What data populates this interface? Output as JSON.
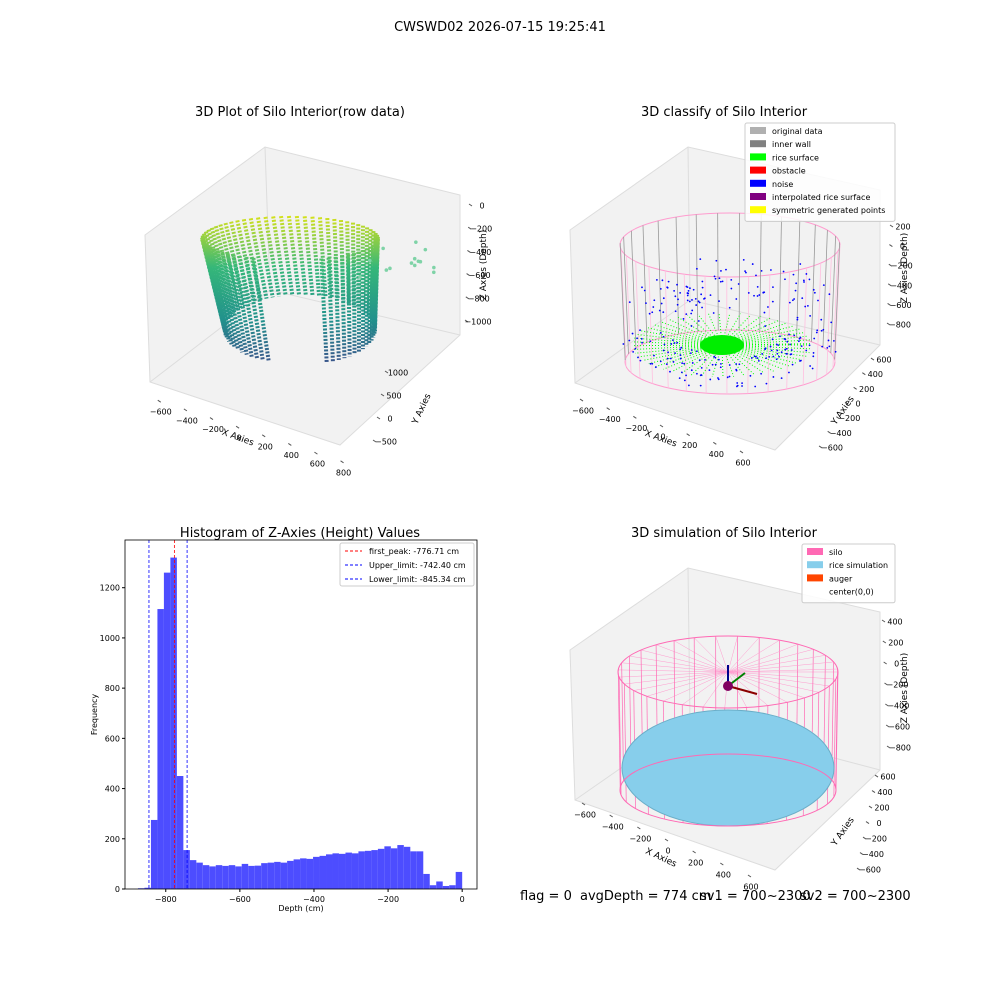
{
  "title": "CWSWD02 2026-07-15 19:25:41",
  "chart_data": [
    {
      "type": "scatter3d",
      "title": "3D Plot of Silo Interior(row data)",
      "xlabel": "X Axies",
      "ylabel": "Y Axies",
      "zlabel": "Z Axies (Depth)",
      "xlim": [
        -700,
        900
      ],
      "ylim": [
        -700,
        1200
      ],
      "zlim": [
        -1100,
        100
      ],
      "xticks": [
        {
          "value": -600,
          "label": "−600"
        },
        {
          "value": -400,
          "label": "−400"
        },
        {
          "value": -200,
          "label": "−200"
        },
        0,
        200,
        400,
        600,
        800
      ],
      "yticks": [
        {
          "value": -500,
          "label": "−500"
        },
        0,
        500,
        1000
      ],
      "zticks": [
        0,
        {
          "value": -200,
          "label": "−200"
        },
        {
          "value": -400,
          "label": "−400"
        },
        {
          "value": -600,
          "label": "−600"
        },
        {
          "value": -800,
          "label": "−800"
        },
        {
          "value": -1000,
          "label": "−1000"
        }
      ]
    },
    {
      "type": "scatter3d",
      "title": "3D classify of Silo Interior",
      "xlabel": "X Axies",
      "ylabel": "Y Axies",
      "zlabel": "Z Axies (Depth)",
      "xlim": [
        -700,
        700
      ],
      "ylim": [
        -700,
        700
      ],
      "zlim": [
        -900,
        300
      ],
      "xticks": [
        {
          "value": -600,
          "label": "−600"
        },
        {
          "value": -400,
          "label": "−400"
        },
        {
          "value": -200,
          "label": "−200"
        },
        0,
        200,
        400,
        600
      ],
      "yticks": [
        {
          "value": -600,
          "label": "−600"
        },
        {
          "value": -400,
          "label": "−400"
        },
        {
          "value": -200,
          "label": "−200"
        },
        0,
        200,
        400,
        600
      ],
      "zticks": [
        200,
        0,
        {
          "value": -200,
          "label": "−200"
        },
        {
          "value": -400,
          "label": "−400"
        },
        {
          "value": -600,
          "label": "−600"
        },
        {
          "value": -800,
          "label": "−800"
        }
      ],
      "legend": [
        {
          "name": "original data",
          "color": "#b0b0b0"
        },
        {
          "name": "inner wall",
          "color": "#808080"
        },
        {
          "name": "rice surface",
          "color": "#00ff00"
        },
        {
          "name": "obstacle",
          "color": "#ff0000"
        },
        {
          "name": "noise",
          "color": "#0000ff"
        },
        {
          "name": "interpolated rice surface",
          "color": "#800080"
        },
        {
          "name": "symmetric generated points",
          "color": "#ffff00"
        }
      ]
    },
    {
      "type": "histogram",
      "title": "Histogram of Z-Axies (Height) Values",
      "xlabel": "Depth (cm)",
      "ylabel": "Frequency",
      "color": "#4d4dff",
      "xlim": [
        -910,
        40
      ],
      "ylim": [
        0,
        1390
      ],
      "xticks": [
        {
          "value": -800,
          "label": "−800"
        },
        {
          "value": -600,
          "label": "−600"
        },
        {
          "value": -400,
          "label": "−400"
        },
        {
          "value": -200,
          "label": "−200"
        },
        0
      ],
      "yticks": [
        0,
        200,
        400,
        600,
        800,
        1000,
        1200
      ],
      "bins": [
        -875,
        -857.5,
        -840,
        -822.5,
        -805,
        -787.5,
        -770,
        -752.5,
        -735,
        -717.5,
        -700,
        -682.5,
        -665,
        -647.5,
        -630,
        -612.5,
        -595,
        -577.5,
        -560,
        -542.5,
        -525,
        -507.5,
        -490,
        -472.5,
        -455,
        -437.5,
        -420,
        -402.5,
        -385,
        -367.5,
        -350,
        -332.5,
        -315,
        -297.5,
        -280,
        -262.5,
        -245,
        -227.5,
        -210,
        -192.5,
        -175,
        -157.5,
        -140,
        -122.5,
        -105,
        -87.5,
        -70,
        -52.5,
        -35,
        -17.5,
        0
      ],
      "values": [
        3,
        5,
        275,
        1115,
        1260,
        1320,
        450,
        155,
        115,
        105,
        95,
        90,
        95,
        92,
        95,
        90,
        100,
        92,
        93,
        103,
        105,
        108,
        105,
        112,
        118,
        122,
        120,
        128,
        132,
        138,
        142,
        140,
        145,
        142,
        150,
        152,
        155,
        160,
        170,
        162,
        175,
        168,
        150,
        150,
        60,
        15,
        30,
        12,
        15,
        68
      ],
      "vlines": [
        {
          "name": "first_peak: -776.71 cm",
          "value": -776.71,
          "color": "#ff0000"
        },
        {
          "name": "Upper_limit: -742.40 cm",
          "value": -742.4,
          "color": "#0000ff"
        },
        {
          "name": "Lower_limit: -845.34 cm",
          "value": -845.34,
          "color": "#0000ff"
        }
      ]
    },
    {
      "type": "surface3d",
      "title": "3D simulation of Silo Interior",
      "xlabel": "X Axies",
      "ylabel": "Y Axies",
      "zlabel": "Z Axies (Depth)",
      "xlim": [
        -700,
        700
      ],
      "ylim": [
        -700,
        700
      ],
      "zlim": [
        -900,
        500
      ],
      "xticks": [
        {
          "value": -600,
          "label": "−600"
        },
        {
          "value": -400,
          "label": "−400"
        },
        {
          "value": -200,
          "label": "−200"
        },
        0,
        200,
        400,
        600
      ],
      "yticks": [
        {
          "value": -600,
          "label": "−600"
        },
        {
          "value": -400,
          "label": "−400"
        },
        {
          "value": -200,
          "label": "−200"
        },
        0,
        200,
        400,
        600
      ],
      "zticks": [
        400,
        200,
        0,
        {
          "value": -200,
          "label": "−200"
        },
        {
          "value": -400,
          "label": "−400"
        },
        {
          "value": -600,
          "label": "−600"
        },
        {
          "value": -800,
          "label": "−800"
        }
      ],
      "legend": [
        {
          "name": "silo",
          "color": "#ff69b4"
        },
        {
          "name": "rice simulation",
          "color": "#87ceeb"
        },
        {
          "name": "auger",
          "color": "#ff4500"
        },
        {
          "name": "center(0,0)",
          "color": "#ffffff"
        }
      ]
    }
  ],
  "footer": [
    "flag = 0",
    "avgDepth = 774 cm",
    "sv1 = 700~2300",
    "sv2 = 700~2300"
  ]
}
